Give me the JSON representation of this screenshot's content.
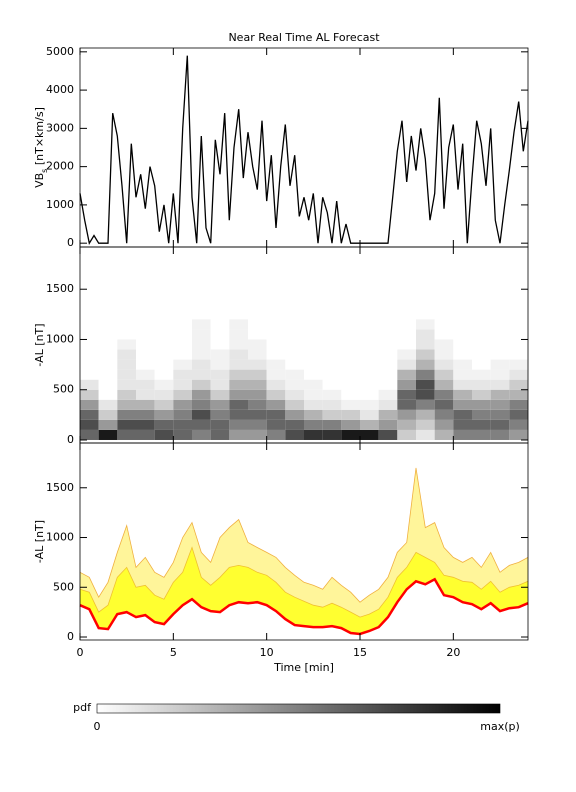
{
  "chart_data": [
    {
      "type": "line",
      "title": "Near Real Time AL Forecast",
      "ylabel": {
        "main": "VB",
        "sub": "s",
        "unit": " [nT×km/s]"
      },
      "x": [
        0,
        0.25,
        0.5,
        0.75,
        1,
        1.25,
        1.5,
        1.75,
        2,
        2.25,
        2.5,
        2.75,
        3,
        3.25,
        3.5,
        3.75,
        4,
        4.25,
        4.5,
        4.75,
        5,
        5.25,
        5.5,
        5.75,
        6,
        6.25,
        6.5,
        6.75,
        7,
        7.25,
        7.5,
        7.75,
        8,
        8.25,
        8.5,
        8.75,
        9,
        9.25,
        9.5,
        9.75,
        10,
        10.25,
        10.5,
        10.75,
        11,
        11.25,
        11.5,
        11.75,
        12,
        12.25,
        12.5,
        12.75,
        13,
        13.25,
        13.5,
        13.75,
        14,
        14.25,
        14.5,
        14.75,
        15,
        15.25,
        15.5,
        15.75,
        16,
        16.25,
        16.5,
        16.75,
        17,
        17.25,
        17.5,
        17.75,
        18,
        18.25,
        18.5,
        18.75,
        19,
        19.25,
        19.5,
        19.75,
        20,
        20.25,
        20.5,
        20.75,
        21,
        21.25,
        21.5,
        21.75,
        22,
        22.25,
        22.5,
        22.75,
        23,
        23.25,
        23.5,
        23.75,
        24
      ],
      "values": [
        1300,
        600,
        0,
        200,
        0,
        0,
        0,
        3400,
        2800,
        1500,
        0,
        2600,
        1200,
        1800,
        900,
        2000,
        1500,
        300,
        1000,
        0,
        1300,
        0,
        3000,
        4900,
        1200,
        0,
        2800,
        400,
        0,
        2700,
        1800,
        3400,
        600,
        2500,
        3500,
        1700,
        2900,
        2000,
        1400,
        3200,
        1100,
        2300,
        400,
        2000,
        3100,
        1500,
        2300,
        700,
        1200,
        600,
        1300,
        0,
        1200,
        800,
        0,
        1100,
        0,
        500,
        0,
        0,
        0,
        0,
        0,
        0,
        0,
        0,
        0,
        1200,
        2400,
        3200,
        1600,
        2800,
        1900,
        3000,
        2200,
        600,
        1300,
        3800,
        900,
        2500,
        3100,
        1400,
        2600,
        0,
        1700,
        3200,
        2600,
        1500,
        3000,
        600,
        0,
        1000,
        1900,
        2900,
        3700,
        2400,
        3200
      ],
      "color": "#000000",
      "xlim": [
        0,
        24
      ],
      "xticks": [
        0,
        5,
        10,
        15,
        20
      ],
      "ylim": [
        -100,
        5100
      ],
      "yticks": [
        0,
        1000,
        2000,
        3000,
        4000,
        5000
      ]
    },
    {
      "type": "heatmap",
      "ylabel": "-AL [nT]",
      "x_bins": [
        0,
        1,
        2,
        3,
        4,
        5,
        6,
        7,
        8,
        9,
        10,
        11,
        12,
        13,
        14,
        15,
        16,
        17,
        18,
        19,
        20,
        21,
        22,
        23,
        24
      ],
      "y_bins": [
        0,
        100,
        200,
        300,
        400,
        500,
        600,
        700,
        800,
        900,
        1000,
        1100,
        1200
      ],
      "values": [
        [
          0.6,
          0.7,
          0.6,
          0.4,
          0.2,
          0.1,
          0,
          0,
          0,
          0,
          0,
          0
        ],
        [
          0.9,
          0.4,
          0.2,
          0.1,
          0,
          0,
          0,
          0,
          0,
          0,
          0,
          0
        ],
        [
          0.6,
          0.7,
          0.5,
          0.3,
          0.2,
          0.1,
          0.1,
          0.1,
          0.1,
          0.05,
          0,
          0
        ],
        [
          0.6,
          0.7,
          0.5,
          0.3,
          0.1,
          0.1,
          0.05,
          0,
          0,
          0,
          0,
          0
        ],
        [
          0.7,
          0.6,
          0.4,
          0.2,
          0.1,
          0.05,
          0,
          0,
          0,
          0,
          0,
          0
        ],
        [
          0.6,
          0.6,
          0.5,
          0.4,
          0.2,
          0.1,
          0.1,
          0.05,
          0,
          0,
          0,
          0
        ],
        [
          0.5,
          0.6,
          0.7,
          0.5,
          0.4,
          0.2,
          0.1,
          0.1,
          0.05,
          0.05,
          0.05,
          0.05
        ],
        [
          0.6,
          0.6,
          0.5,
          0.4,
          0.2,
          0.1,
          0.1,
          0.05,
          0.05,
          0,
          0,
          0
        ],
        [
          0.4,
          0.5,
          0.6,
          0.6,
          0.4,
          0.3,
          0.2,
          0.1,
          0.1,
          0.05,
          0.05,
          0.05
        ],
        [
          0.4,
          0.5,
          0.6,
          0.5,
          0.4,
          0.3,
          0.2,
          0.1,
          0.05,
          0.05,
          0,
          0
        ],
        [
          0.5,
          0.6,
          0.6,
          0.4,
          0.2,
          0.1,
          0.05,
          0.05,
          0,
          0,
          0,
          0
        ],
        [
          0.7,
          0.6,
          0.4,
          0.2,
          0.1,
          0.05,
          0.05,
          0,
          0,
          0,
          0,
          0
        ],
        [
          0.8,
          0.5,
          0.3,
          0.1,
          0.05,
          0.05,
          0,
          0,
          0,
          0,
          0,
          0
        ],
        [
          0.8,
          0.5,
          0.2,
          0.1,
          0.05,
          0,
          0,
          0,
          0,
          0,
          0,
          0
        ],
        [
          0.9,
          0.4,
          0.2,
          0.05,
          0,
          0,
          0,
          0,
          0,
          0,
          0,
          0
        ],
        [
          0.9,
          0.3,
          0.1,
          0.05,
          0,
          0,
          0,
          0,
          0,
          0,
          0,
          0
        ],
        [
          0.7,
          0.4,
          0.3,
          0.1,
          0.05,
          0,
          0,
          0,
          0,
          0,
          0,
          0
        ],
        [
          0.2,
          0.3,
          0.4,
          0.6,
          0.6,
          0.4,
          0.3,
          0.1,
          0.05,
          0,
          0,
          0
        ],
        [
          0.1,
          0.2,
          0.3,
          0.5,
          0.7,
          0.7,
          0.5,
          0.3,
          0.2,
          0.1,
          0.1,
          0.05
        ],
        [
          0.3,
          0.4,
          0.5,
          0.6,
          0.5,
          0.3,
          0.2,
          0.1,
          0.05,
          0.05,
          0,
          0
        ],
        [
          0.5,
          0.6,
          0.6,
          0.4,
          0.3,
          0.1,
          0.05,
          0.05,
          0,
          0,
          0,
          0
        ],
        [
          0.5,
          0.6,
          0.5,
          0.4,
          0.2,
          0.1,
          0.05,
          0,
          0,
          0,
          0,
          0
        ],
        [
          0.5,
          0.6,
          0.5,
          0.4,
          0.3,
          0.1,
          0.05,
          0.05,
          0,
          0,
          0,
          0
        ],
        [
          0.4,
          0.5,
          0.6,
          0.5,
          0.3,
          0.2,
          0.1,
          0.05,
          0,
          0,
          0,
          0
        ]
      ],
      "colorbar": {
        "label": "pdf",
        "min_label": "0",
        "max_label": "max(p)"
      },
      "xlim": [
        0,
        24
      ],
      "xticks": [
        0,
        5,
        10,
        15,
        20
      ],
      "ylim": [
        -30,
        1920
      ],
      "yticks": [
        0,
        500,
        1000,
        1500
      ]
    },
    {
      "type": "band",
      "ylabel": "-AL [nT]",
      "xlabel": "Time [min]",
      "xtick_labels": true,
      "x": [
        0,
        0.5,
        1,
        1.5,
        2,
        2.5,
        3,
        3.5,
        4,
        4.5,
        5,
        5.5,
        6,
        6.5,
        7,
        7.5,
        8,
        8.5,
        9,
        9.5,
        10,
        10.5,
        11,
        11.5,
        12,
        12.5,
        13,
        13.5,
        14,
        14.5,
        15,
        15.5,
        16,
        16.5,
        17,
        17.5,
        18,
        18.5,
        19,
        19.5,
        20,
        20.5,
        21,
        21.5,
        22,
        22.5,
        23,
        23.5,
        24
      ],
      "series": [
        {
          "color": "#fff59a",
          "edge": "#f0b040",
          "values": [
            650,
            600,
            400,
            550,
            850,
            1120,
            700,
            800,
            650,
            600,
            750,
            1000,
            1150,
            850,
            750,
            1000,
            1100,
            1180,
            950,
            900,
            850,
            800,
            700,
            620,
            550,
            520,
            480,
            600,
            520,
            450,
            350,
            420,
            480,
            600,
            850,
            950,
            1700,
            1100,
            1150,
            900,
            800,
            750,
            800,
            700,
            850,
            650,
            720,
            750,
            800
          ]
        },
        {
          "color": "#ffff30",
          "edge": "#f0c030",
          "values": [
            480,
            450,
            250,
            320,
            600,
            700,
            500,
            520,
            420,
            380,
            550,
            650,
            900,
            600,
            520,
            600,
            700,
            720,
            700,
            650,
            620,
            550,
            450,
            400,
            360,
            320,
            300,
            340,
            300,
            250,
            200,
            230,
            280,
            400,
            600,
            700,
            850,
            800,
            750,
            620,
            600,
            560,
            550,
            480,
            560,
            450,
            500,
            520,
            560
          ]
        },
        {
          "color": "#ff0000",
          "edge": "#ff0000",
          "values": [
            320,
            280,
            90,
            80,
            230,
            250,
            200,
            220,
            150,
            130,
            230,
            320,
            380,
            300,
            260,
            250,
            320,
            350,
            340,
            350,
            320,
            260,
            180,
            120,
            110,
            100,
            100,
            110,
            90,
            40,
            30,
            60,
            100,
            200,
            350,
            480,
            560,
            530,
            580,
            420,
            400,
            350,
            330,
            280,
            340,
            260,
            290,
            300,
            340
          ]
        }
      ],
      "xlim": [
        0,
        24
      ],
      "xticks": [
        0,
        5,
        10,
        15,
        20
      ],
      "ylim": [
        -30,
        1950
      ],
      "yticks": [
        0,
        500,
        1000,
        1500
      ]
    }
  ]
}
